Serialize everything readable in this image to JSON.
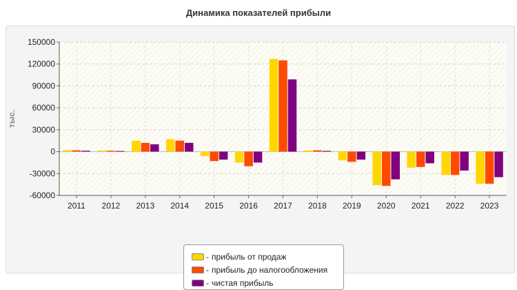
{
  "chart_data": {
    "type": "bar",
    "title": "Динамика показателей прибыли",
    "ylabel": "тыс.",
    "xlabel": "",
    "ylim": [
      -60000,
      150000
    ],
    "yticks": [
      150000,
      120000,
      90000,
      60000,
      30000,
      0,
      -30000,
      -60000
    ],
    "grid": true,
    "legend_position": "bottom",
    "categories": [
      "2011",
      "2012",
      "2013",
      "2014",
      "2015",
      "2016",
      "2017",
      "2018",
      "2019",
      "2020",
      "2021",
      "2022",
      "2023"
    ],
    "series": [
      {
        "name": "прибыль от продаж",
        "color": "#ffd700",
        "values": [
          2000,
          1500,
          15000,
          17000,
          -6000,
          -15000,
          127000,
          1500,
          -12000,
          -46000,
          -22000,
          -32000,
          -44000
        ]
      },
      {
        "name": "прибыль до налогообложения",
        "color": "#ff4a00",
        "values": [
          1800,
          1200,
          12000,
          15000,
          -13000,
          -20000,
          125000,
          1800,
          -14000,
          -47000,
          -21000,
          -32000,
          -44000
        ]
      },
      {
        "name": "чистая прибыль",
        "color": "#800080",
        "values": [
          1200,
          900,
          10000,
          12000,
          -11000,
          -15000,
          99000,
          1000,
          -11000,
          -38000,
          -16000,
          -26000,
          -35000
        ]
      }
    ]
  }
}
